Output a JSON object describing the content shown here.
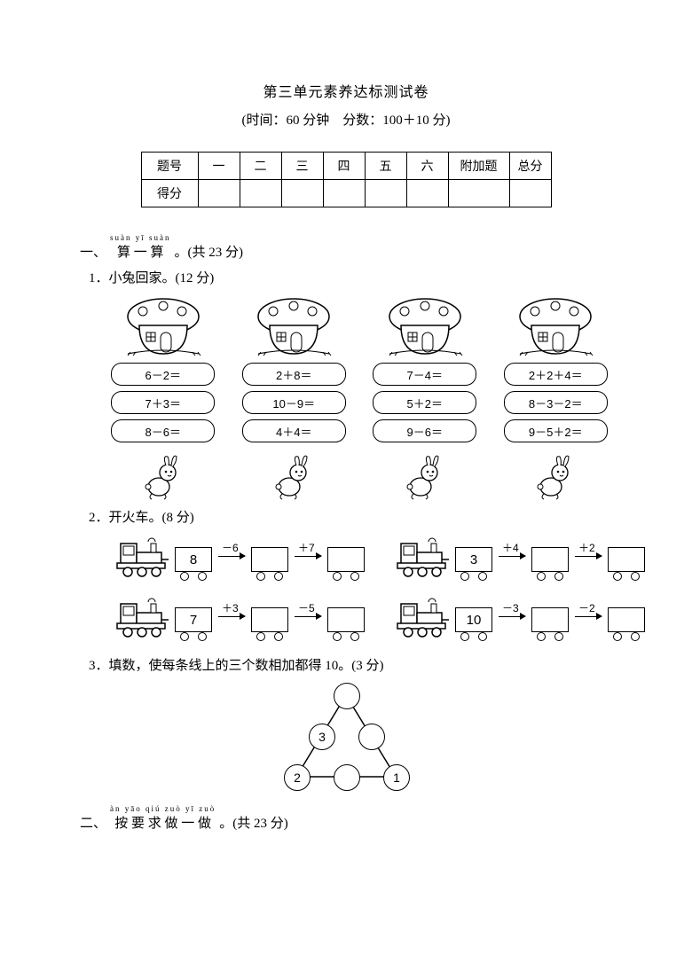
{
  "title": "第三单元素养达标测试卷",
  "subtitle": "(时间：60 分钟　分数：100＋10 分)",
  "scoreTable": {
    "rowLabels": [
      "题号",
      "得分"
    ],
    "cols": [
      "一",
      "二",
      "三",
      "四",
      "五",
      "六",
      "附加题",
      "总分"
    ]
  },
  "section1": {
    "number": "一、",
    "pinyin": "suàn yī suàn",
    "han": "算 一 算",
    "tail": " 。(共 23 分)",
    "q1": {
      "label": "1．小兔回家。(12 分)",
      "cols": [
        [
          "6－2＝",
          "7＋3＝",
          "8－6＝"
        ],
        [
          "2＋8＝",
          "10－9＝",
          "4＋4＝"
        ],
        [
          "7－4＝",
          "5＋2＝",
          "9－6＝"
        ],
        [
          "2＋2＋4＝",
          "8－3－2＝",
          "9－5＋2＝"
        ]
      ]
    },
    "q2": {
      "label": "2．开火车。(8 分)",
      "trains": [
        {
          "start": "8",
          "ops": [
            "－6",
            "＋7"
          ]
        },
        {
          "start": "3",
          "ops": [
            "＋4",
            "＋2"
          ]
        },
        {
          "start": "7",
          "ops": [
            "＋3",
            "－5"
          ]
        },
        {
          "start": "10",
          "ops": [
            "－3",
            "－2"
          ]
        }
      ]
    },
    "q3": {
      "label": "3．填数，使每条线上的三个数相加都得 10。(3 分)",
      "nodes": {
        "midLeft": "3",
        "bottomLeft": "2",
        "bottomRight": "1"
      }
    }
  },
  "section2": {
    "number": "二、",
    "pinyin": "àn yāo qiú zuò yī zuò",
    "han": "按 要 求 做 一 做",
    "tail": " 。(共 23 分)"
  },
  "colors": {
    "ink": "#000000",
    "paper": "#ffffff"
  }
}
